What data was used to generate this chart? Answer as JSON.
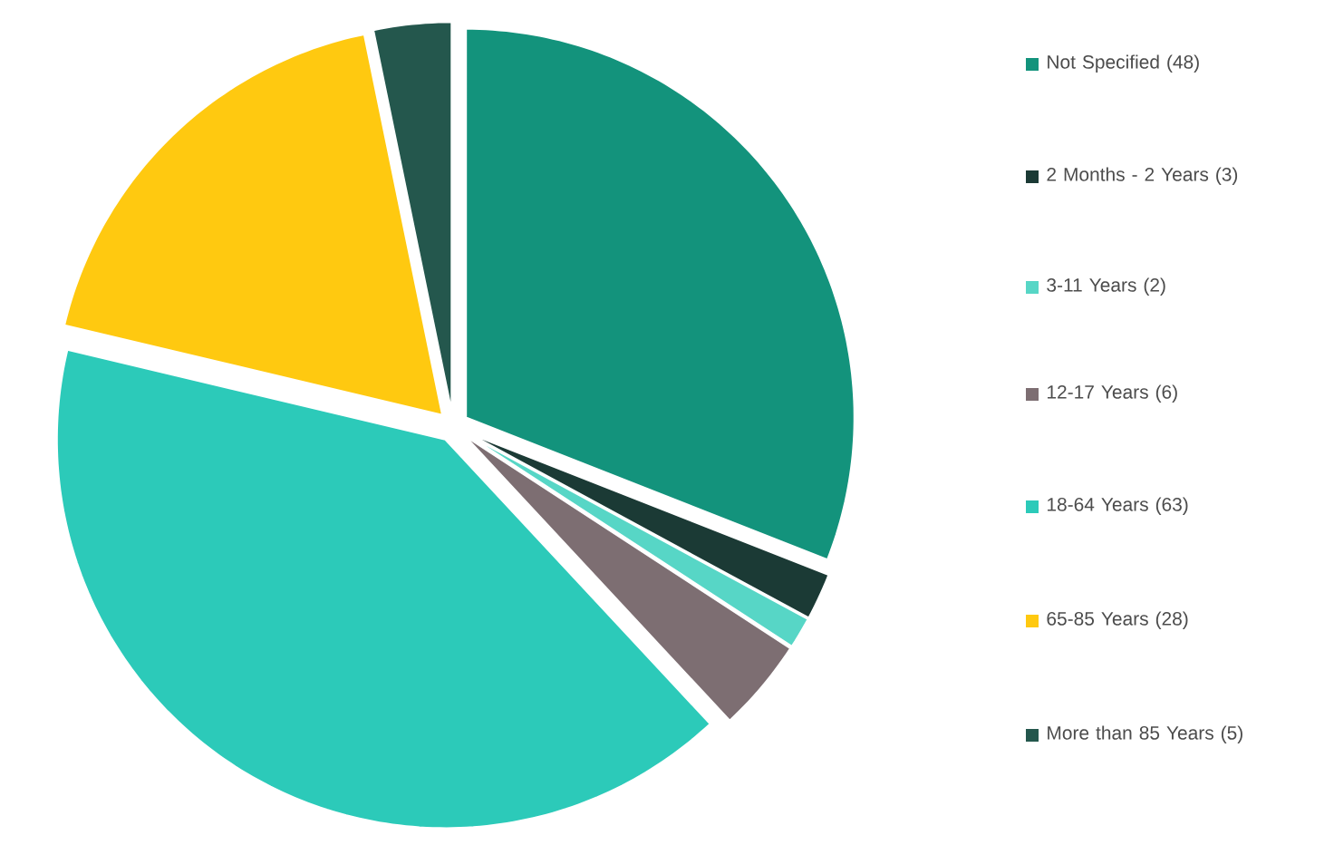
{
  "chart_data": {
    "type": "pie",
    "categories": [
      "Not Specified (48)",
      "2 Months - 2 Years (3)",
      "3-11 Years (2)",
      "12-17 Years (6)",
      "18-64 Years (63)",
      "65-85 Years (28)",
      "More than 85 Years (5)"
    ],
    "values": [
      48,
      3,
      2,
      6,
      63,
      28,
      5
    ],
    "colors": [
      "#13937c",
      "#1b3a35",
      "#57d6c6",
      "#7d6e72",
      "#2ccab9",
      "#ffc910",
      "#24574d"
    ],
    "legend": "right"
  }
}
